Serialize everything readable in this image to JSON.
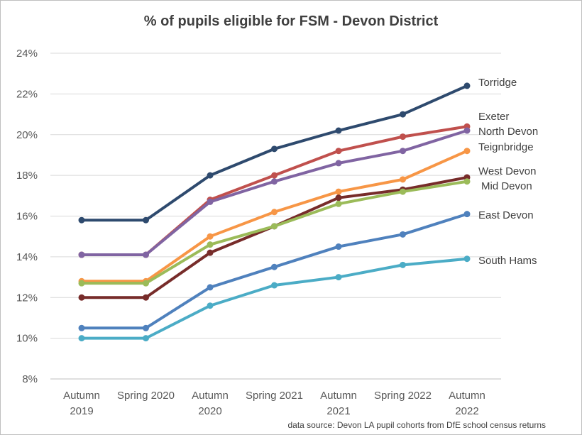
{
  "chart_data": {
    "type": "line",
    "title": "% of pupils eligible for FSM - Devon District",
    "categories": [
      [
        "Autumn",
        "2019"
      ],
      [
        "Spring 2020"
      ],
      [
        "Autumn",
        "2020"
      ],
      [
        "Spring 2021"
      ],
      [
        "Autumn",
        "2021"
      ],
      [
        "Spring 2022"
      ],
      [
        "Autumn",
        "2022"
      ]
    ],
    "yticks": [
      "8%",
      "10%",
      "12%",
      "14%",
      "16%",
      "18%",
      "20%",
      "22%",
      "24%"
    ],
    "ylim": [
      8,
      24
    ],
    "grid": true,
    "series": [
      {
        "name": "Torridge",
        "color": "#2e4a6e",
        "values": [
          15.8,
          15.8,
          18.0,
          19.3,
          20.2,
          21.0,
          22.4
        ]
      },
      {
        "name": "Exeter",
        "color": "#c0504d",
        "values": [
          14.1,
          14.1,
          16.8,
          18.0,
          19.2,
          19.9,
          20.4
        ]
      },
      {
        "name": "North Devon",
        "color": "#8064a2",
        "values": [
          14.1,
          14.1,
          16.7,
          17.7,
          18.6,
          19.2,
          20.2
        ]
      },
      {
        "name": "Teignbridge",
        "color": "#f79646",
        "values": [
          12.8,
          12.8,
          15.0,
          16.2,
          17.2,
          17.8,
          19.2
        ]
      },
      {
        "name": "West Devon",
        "color": "#772c2a",
        "values": [
          12.0,
          12.0,
          14.2,
          15.5,
          16.9,
          17.3,
          17.9
        ]
      },
      {
        "name": "Mid Devon",
        "color": "#9bbb59",
        "values": [
          12.7,
          12.7,
          14.6,
          15.5,
          16.6,
          17.2,
          17.7
        ]
      },
      {
        "name": "East Devon",
        "color": "#4f81bd",
        "values": [
          10.5,
          10.5,
          12.5,
          13.5,
          14.5,
          15.1,
          16.1
        ]
      },
      {
        "name": "South Hams",
        "color": "#4bacc6",
        "values": [
          10.0,
          10.0,
          11.6,
          12.6,
          13.0,
          13.6,
          13.9
        ]
      }
    ],
    "source_note": "data source: Devon LA pupil cohorts from DfE school census returns"
  }
}
